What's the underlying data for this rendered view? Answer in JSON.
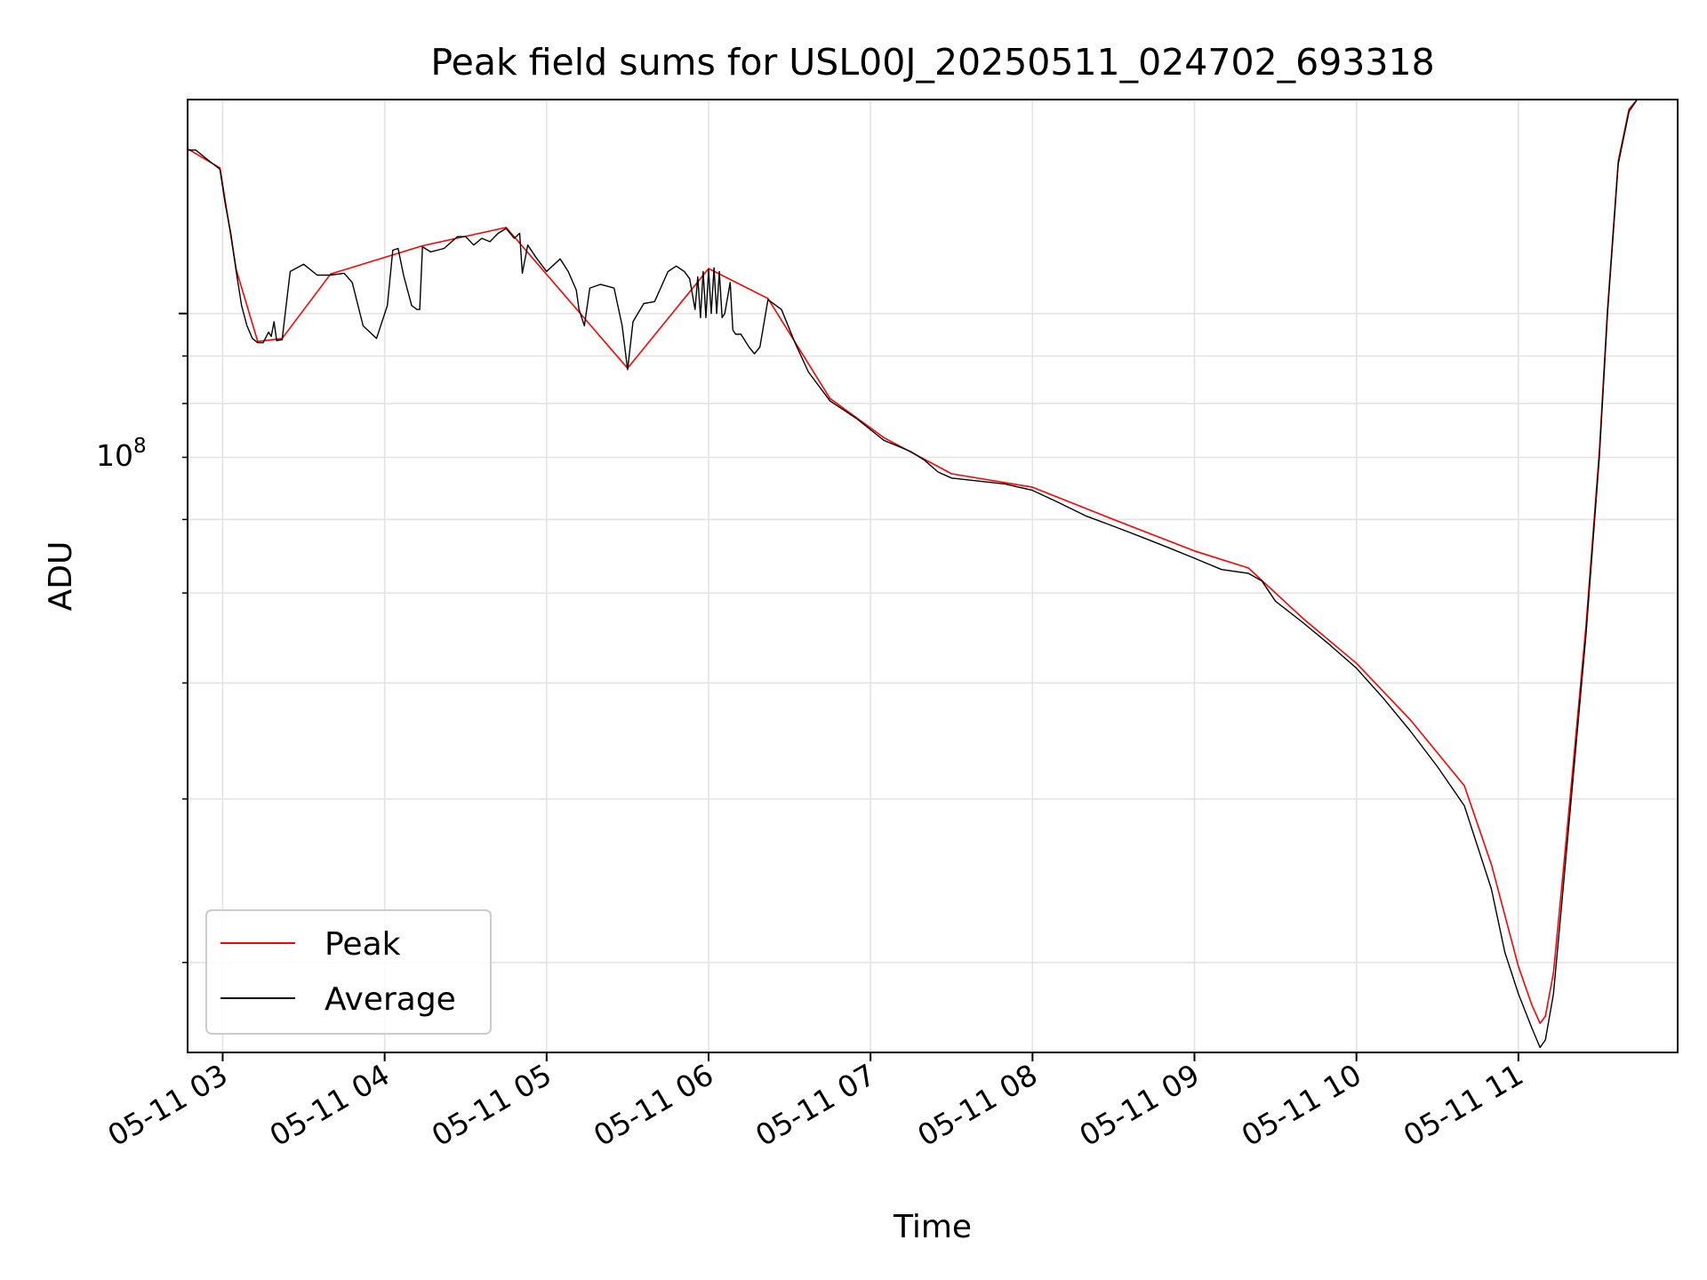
{
  "chart_data": {
    "type": "line",
    "title": "Peak field sums for USL00J_20250511_024702_693318",
    "xlabel": "Time",
    "ylabel": "ADU",
    "x_tick_labels": [
      "05-11 03",
      "05-11 04",
      "05-11 05",
      "05-11 06",
      "05-11 07",
      "05-11 08",
      "05-11 09",
      "05-11 10",
      "05-11 11"
    ],
    "y_tick_label_base": "10",
    "y_tick_label_exp": "8",
    "y_scale": "log",
    "xlim": [
      "2025-05-11 02:47",
      "2025-05-11 11:59"
    ],
    "ylim": [
      16000000,
      170000000
    ],
    "grid": true,
    "legend_position": "lower-left",
    "colors": {
      "Peak": "#ff0000",
      "Average": "#000000"
    },
    "series": [
      {
        "name": "Average",
        "points": [
          [
            "2025-05-11 02:47",
            150000000
          ],
          [
            "2025-05-11 02:50",
            150000000
          ],
          [
            "2025-05-11 02:55",
            146000000
          ],
          [
            "2025-05-11 02:59",
            143000000
          ],
          [
            "2025-05-11 03:01",
            131000000
          ],
          [
            "2025-05-11 03:03",
            122000000
          ],
          [
            "2025-05-11 03:05",
            111000000
          ],
          [
            "2025-05-11 03:07",
            102000000
          ],
          [
            "2025-05-11 03:09",
            97000000
          ],
          [
            "2025-05-11 03:11",
            94000000
          ],
          [
            "2025-05-11 03:13",
            93000000
          ],
          [
            "2025-05-11 03:15",
            93000000
          ],
          [
            "2025-05-11 03:17",
            95500000
          ],
          [
            "2025-05-11 03:18",
            94500000
          ],
          [
            "2025-05-11 03:19",
            98000000
          ],
          [
            "2025-05-11 03:20",
            93500000
          ],
          [
            "2025-05-11 03:22",
            93700000
          ],
          [
            "2025-05-11 03:25",
            111000000
          ],
          [
            "2025-05-11 03:30",
            113000000
          ],
          [
            "2025-05-11 03:35",
            110000000
          ],
          [
            "2025-05-11 03:40",
            110000000
          ],
          [
            "2025-05-11 03:45",
            110500000
          ],
          [
            "2025-05-11 03:48",
            108000000
          ],
          [
            "2025-05-11 03:52",
            97000000
          ],
          [
            "2025-05-11 03:57",
            94000000
          ],
          [
            "2025-05-11 04:01",
            102000000
          ],
          [
            "2025-05-11 04:03",
            117000000
          ],
          [
            "2025-05-11 04:05",
            117500000
          ],
          [
            "2025-05-11 04:07",
            110000000
          ],
          [
            "2025-05-11 04:10",
            102000000
          ],
          [
            "2025-05-11 04:12",
            101000000
          ],
          [
            "2025-05-11 04:13",
            101000000
          ],
          [
            "2025-05-11 04:14",
            118000000
          ],
          [
            "2025-05-11 04:17",
            116500000
          ],
          [
            "2025-05-11 04:22",
            117500000
          ],
          [
            "2025-05-11 04:27",
            121000000
          ],
          [
            "2025-05-11 04:30",
            121000000
          ],
          [
            "2025-05-11 04:33",
            118500000
          ],
          [
            "2025-05-11 04:36",
            120500000
          ],
          [
            "2025-05-11 04:39",
            119500000
          ],
          [
            "2025-05-11 04:42",
            122000000
          ],
          [
            "2025-05-11 04:45",
            123500000
          ],
          [
            "2025-05-11 04:48",
            120500000
          ],
          [
            "2025-05-11 04:50",
            122000000
          ],
          [
            "2025-05-11 04:51",
            110500000
          ],
          [
            "2025-05-11 04:53",
            118500000
          ],
          [
            "2025-05-11 04:56",
            115000000
          ],
          [
            "2025-05-11 05:00",
            111000000
          ],
          [
            "2025-05-11 05:05",
            114500000
          ],
          [
            "2025-05-11 05:08",
            111000000
          ],
          [
            "2025-05-11 05:11",
            106000000
          ],
          [
            "2025-05-11 05:12",
            101000000
          ],
          [
            "2025-05-11 05:14",
            97000000
          ],
          [
            "2025-05-11 05:16",
            106500000
          ],
          [
            "2025-05-11 05:20",
            107500000
          ],
          [
            "2025-05-11 05:25",
            106500000
          ],
          [
            "2025-05-11 05:28",
            97000000
          ],
          [
            "2025-05-11 05:30",
            87000000
          ],
          [
            "2025-05-11 05:32",
            98000000
          ],
          [
            "2025-05-11 05:36",
            102500000
          ],
          [
            "2025-05-11 05:40",
            103000000
          ],
          [
            "2025-05-11 05:45",
            111000000
          ],
          [
            "2025-05-11 05:48",
            112500000
          ],
          [
            "2025-05-11 05:51",
            111000000
          ],
          [
            "2025-05-11 05:53",
            109000000
          ],
          [
            "2025-05-11 05:55",
            101000000
          ],
          [
            "2025-05-11 05:56",
            109500000
          ],
          [
            "2025-05-11 05:57",
            99000000
          ],
          [
            "2025-05-11 05:58",
            111000000
          ],
          [
            "2025-05-11 05:59",
            99000000
          ],
          [
            "2025-05-11 06:00",
            111500000
          ],
          [
            "2025-05-11 06:01",
            100000000
          ],
          [
            "2025-05-11 06:02",
            112000000
          ],
          [
            "2025-05-11 06:03",
            100000000
          ],
          [
            "2025-05-11 06:04",
            111000000
          ],
          [
            "2025-05-11 06:05",
            99000000
          ],
          [
            "2025-05-11 06:06",
            100000000
          ],
          [
            "2025-05-11 06:08",
            108000000
          ],
          [
            "2025-05-11 06:09",
            96000000
          ],
          [
            "2025-05-11 06:10",
            95000000
          ],
          [
            "2025-05-11 06:12",
            95000000
          ],
          [
            "2025-05-11 06:15",
            92000000
          ],
          [
            "2025-05-11 06:17",
            90500000
          ],
          [
            "2025-05-11 06:19",
            92000000
          ],
          [
            "2025-05-11 06:22",
            103500000
          ],
          [
            "2025-05-11 06:27",
            101000000
          ],
          [
            "2025-05-11 06:32",
            93000000
          ],
          [
            "2025-05-11 06:37",
            86500000
          ],
          [
            "2025-05-11 06:45",
            80500000
          ],
          [
            "2025-05-11 06:55",
            77000000
          ],
          [
            "2025-05-11 07:05",
            73000000
          ],
          [
            "2025-05-11 07:10",
            72000000
          ],
          [
            "2025-05-11 07:15",
            71000000
          ],
          [
            "2025-05-11 07:20",
            69500000
          ],
          [
            "2025-05-11 07:25",
            67500000
          ],
          [
            "2025-05-11 07:30",
            66500000
          ],
          [
            "2025-05-11 07:40",
            66000000
          ],
          [
            "2025-05-11 07:50",
            65500000
          ],
          [
            "2025-05-11 08:00",
            64500000
          ],
          [
            "2025-05-11 08:10",
            62500000
          ],
          [
            "2025-05-11 08:20",
            60500000
          ],
          [
            "2025-05-11 08:30",
            59000000
          ],
          [
            "2025-05-11 08:40",
            57500000
          ],
          [
            "2025-05-11 08:50",
            56000000
          ],
          [
            "2025-05-11 09:00",
            54500000
          ],
          [
            "2025-05-11 09:10",
            53000000
          ],
          [
            "2025-05-11 09:20",
            52500000
          ],
          [
            "2025-05-11 09:25",
            51500000
          ],
          [
            "2025-05-11 09:30",
            49000000
          ],
          [
            "2025-05-11 09:40",
            46500000
          ],
          [
            "2025-05-11 09:50",
            44000000
          ],
          [
            "2025-05-11 10:00",
            41500000
          ],
          [
            "2025-05-11 10:10",
            38500000
          ],
          [
            "2025-05-11 10:20",
            35500000
          ],
          [
            "2025-05-11 10:30",
            32500000
          ],
          [
            "2025-05-11 10:40",
            29500000
          ],
          [
            "2025-05-11 10:50",
            24000000
          ],
          [
            "2025-05-11 10:55",
            20500000
          ],
          [
            "2025-05-11 11:00",
            18500000
          ],
          [
            "2025-05-11 11:05",
            17000000
          ],
          [
            "2025-05-11 11:08",
            16200000
          ],
          [
            "2025-05-11 11:10",
            16500000
          ],
          [
            "2025-05-11 11:13",
            18500000
          ],
          [
            "2025-05-11 11:16",
            23000000
          ],
          [
            "2025-05-11 11:20",
            31000000
          ],
          [
            "2025-05-11 11:25",
            45000000
          ],
          [
            "2025-05-11 11:30",
            70000000
          ],
          [
            "2025-05-11 11:33",
            100000000
          ],
          [
            "2025-05-11 11:37",
            145000000
          ],
          [
            "2025-05-11 11:41",
            165000000
          ],
          [
            "2025-05-11 11:44",
            170000000
          ]
        ]
      },
      {
        "name": "Peak",
        "points": [
          [
            "2025-05-11 02:47",
            150500000
          ],
          [
            "2025-05-11 02:59",
            143500000
          ],
          [
            "2025-05-11 03:05",
            111500000
          ],
          [
            "2025-05-11 03:13",
            93300000
          ],
          [
            "2025-05-11 03:22",
            94000000
          ],
          [
            "2025-05-11 03:40",
            110300000
          ],
          [
            "2025-05-11 04:14",
            118300000
          ],
          [
            "2025-05-11 04:45",
            123800000
          ],
          [
            "2025-05-11 05:30",
            87300000
          ],
          [
            "2025-05-11 06:00",
            111800000
          ],
          [
            "2025-05-11 06:22",
            103800000
          ],
          [
            "2025-05-11 06:45",
            81000000
          ],
          [
            "2025-05-11 07:05",
            73500000
          ],
          [
            "2025-05-11 07:30",
            67200000
          ],
          [
            "2025-05-11 08:00",
            65000000
          ],
          [
            "2025-05-11 08:30",
            60000000
          ],
          [
            "2025-05-11 09:00",
            55500000
          ],
          [
            "2025-05-11 09:20",
            53200000
          ],
          [
            "2025-05-11 09:40",
            47000000
          ],
          [
            "2025-05-11 10:00",
            42000000
          ],
          [
            "2025-05-11 10:20",
            36500000
          ],
          [
            "2025-05-11 10:40",
            31000000
          ],
          [
            "2025-05-11 10:50",
            25500000
          ],
          [
            "2025-05-11 11:00",
            19800000
          ],
          [
            "2025-05-11 11:05",
            18000000
          ],
          [
            "2025-05-11 11:08",
            17200000
          ],
          [
            "2025-05-11 11:10",
            17500000
          ],
          [
            "2025-05-11 11:13",
            19500000
          ],
          [
            "2025-05-11 11:16",
            24000000
          ],
          [
            "2025-05-11 11:20",
            32000000
          ],
          [
            "2025-05-11 11:25",
            46000000
          ],
          [
            "2025-05-11 11:30",
            71000000
          ],
          [
            "2025-05-11 11:33",
            101000000
          ],
          [
            "2025-05-11 11:37",
            146000000
          ],
          [
            "2025-05-11 11:41",
            166000000
          ],
          [
            "2025-05-11 11:44",
            170000000
          ]
        ]
      }
    ]
  }
}
